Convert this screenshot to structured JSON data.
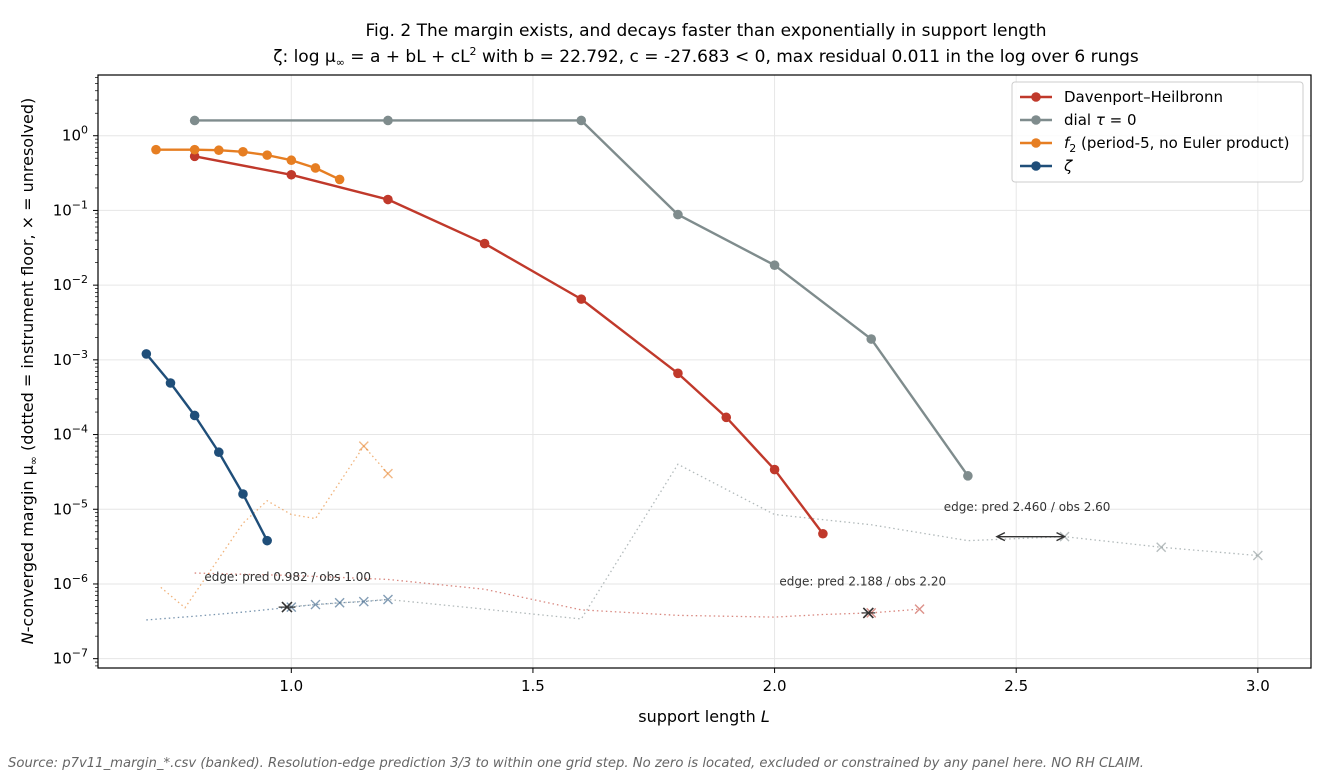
{
  "figure": {
    "title_line1": "Fig. 2  The margin exists, and decays faster than exponentially in support length",
    "source_note": "Source: p7v11_margin_*.csv (banked). Resolution-edge prediction 3/3 to within one grid step.  No zero is located, excluded or constrained by any panel here.  NO RH CLAIM."
  },
  "chart_data": {
    "type": "line",
    "title_line2": {
      "prefix": "ζ: log μ",
      "sub": "∞",
      "eq": " = a + bL + cL",
      "sup": "2",
      "rest": " with b = 22.792, c = -27.683 < 0, max residual 0.011 in the log over 6 rungs"
    },
    "xlabel": {
      "main": "support length ",
      "italic": "L"
    },
    "ylabel": {
      "N": "N",
      "main": "-converged margin μ",
      "sub": "∞",
      "rest": "   (dotted = instrument floor, × = unresolved)"
    },
    "xlim": [
      0.6,
      3.11
    ],
    "ylim": [
      7.5e-08,
      6.5
    ],
    "yscale": "log",
    "grid": true,
    "legend_position": "upper right",
    "x_ticks": [
      1.0,
      1.5,
      2.0,
      2.5,
      3.0
    ],
    "x_tick_labels": [
      "1.0",
      "1.5",
      "2.0",
      "2.5",
      "3.0"
    ],
    "y_ticks": [
      {
        "value": 1,
        "mant": "10",
        "exp": "0"
      },
      {
        "value": 0.1,
        "mant": "10",
        "exp": "−1"
      },
      {
        "value": 0.01,
        "mant": "10",
        "exp": "−2"
      },
      {
        "value": 0.001,
        "mant": "10",
        "exp": "−3"
      },
      {
        "value": 0.0001,
        "mant": "10",
        "exp": "−4"
      },
      {
        "value": 1e-05,
        "mant": "10",
        "exp": "−5"
      },
      {
        "value": 1e-06,
        "mant": "10",
        "exp": "−6"
      },
      {
        "value": 1e-07,
        "mant": "10",
        "exp": "−7"
      }
    ],
    "series": [
      {
        "name": "Davenport–Heilbronn",
        "legend": [
          {
            "t": "Davenport–Heilbronn"
          }
        ],
        "color": "#c0392b",
        "x": [
          0.8,
          1.0,
          1.2,
          1.4,
          1.6,
          1.8,
          1.9,
          2.0,
          2.1
        ],
        "y": [
          0.53,
          0.3,
          0.14,
          0.036,
          0.0065,
          0.00066,
          0.00017,
          3.4e-05,
          4.7e-06
        ],
        "floor_x": [
          0.8,
          1.0,
          1.2,
          1.4,
          1.6,
          1.8,
          2.0,
          2.1,
          2.2,
          2.3
        ],
        "floor_y": [
          1.4e-06,
          1.3e-06,
          1.15e-06,
          8.5e-07,
          4.5e-07,
          3.8e-07,
          3.6e-07,
          3.9e-07,
          4.1e-07,
          4.6e-07
        ],
        "unresolved_x": [
          2.2,
          2.3
        ],
        "unresolved_y": [
          4.1e-07,
          4.6e-07
        ]
      },
      {
        "name": "dial τ = 0",
        "legend": [
          {
            "t": "dial "
          },
          {
            "t": "τ",
            "i": true
          },
          {
            "t": " = 0"
          }
        ],
        "color": "#7f8c8d",
        "x": [
          0.8,
          1.2,
          1.6,
          1.8,
          2.0,
          2.2,
          2.4
        ],
        "y": [
          1.6,
          1.6,
          1.6,
          0.088,
          0.0185,
          0.0019,
          2.8e-05
        ],
        "floor_x": [
          1.0,
          1.2,
          1.4,
          1.6,
          1.8,
          2.0,
          2.2,
          2.4,
          2.6,
          2.8,
          3.0
        ],
        "floor_y": [
          5e-07,
          6.2e-07,
          4.6e-07,
          3.4e-07,
          4e-05,
          8.5e-06,
          6.2e-06,
          3.8e-06,
          4.3e-06,
          3.1e-06,
          2.4e-06
        ],
        "unresolved_x": [
          2.6,
          2.8,
          3.0
        ],
        "unresolved_y": [
          4.3e-06,
          3.1e-06,
          2.4e-06
        ]
      },
      {
        "name": "f2 (period-5, no Euler product)",
        "legend": [
          {
            "t": "f",
            "i": true
          },
          {
            "t": "2",
            "sub": true
          },
          {
            "t": " (period-5, no Euler product)"
          }
        ],
        "color": "#e67e22",
        "x": [
          0.72,
          0.8,
          0.85,
          0.9,
          0.95,
          1.0,
          1.05,
          1.1
        ],
        "y": [
          0.65,
          0.65,
          0.64,
          0.61,
          0.55,
          0.47,
          0.37,
          0.26
        ],
        "floor_x": [
          0.73,
          0.78,
          0.9,
          0.95,
          1.0,
          1.05,
          1.15,
          1.2
        ],
        "floor_y": [
          9e-07,
          4.8e-07,
          6.5e-06,
          1.3e-05,
          8.5e-06,
          7.5e-06,
          7e-05,
          3e-05
        ],
        "unresolved_x": [
          1.15,
          1.2
        ],
        "unresolved_y": [
          7e-05,
          3e-05
        ]
      },
      {
        "name": "ζ",
        "legend": [
          {
            "t": "ζ",
            "i": true
          }
        ],
        "color": "#1f4e79",
        "x": [
          0.7,
          0.75,
          0.8,
          0.85,
          0.9,
          0.95
        ],
        "y": [
          0.0012,
          0.00049,
          0.00018,
          5.8e-05,
          1.6e-05,
          3.8e-06
        ],
        "floor_x": [
          0.7,
          0.8,
          0.9,
          1.0,
          1.05,
          1.1,
          1.15,
          1.2
        ],
        "floor_y": [
          3.3e-07,
          3.7e-07,
          4.2e-07,
          4.9e-07,
          5.3e-07,
          5.6e-07,
          5.8e-07,
          6.2e-07
        ],
        "unresolved_x": [
          1.0,
          1.05,
          1.1,
          1.15,
          1.2
        ],
        "unresolved_y": [
          4.9e-07,
          5.3e-07,
          5.6e-07,
          5.8e-07,
          6.2e-07
        ]
      }
    ],
    "edge_annotations": [
      {
        "text": "edge: pred 0.982 / obs 1.00",
        "text_x": 0.82,
        "text_y": 1.1e-06,
        "pred": 0.982,
        "obs": 1.0,
        "y": 4.9e-07
      },
      {
        "text": "edge: pred 2.188 / obs 2.20",
        "text_x": 2.01,
        "text_y": 9.5e-07,
        "pred": 2.188,
        "obs": 2.2,
        "y": 4.1e-07
      },
      {
        "text": "edge: pred 2.460 / obs 2.60",
        "text_x": 2.35,
        "text_y": 9.5e-06,
        "pred": 2.46,
        "obs": 2.6,
        "y": 4.3e-06
      }
    ]
  }
}
